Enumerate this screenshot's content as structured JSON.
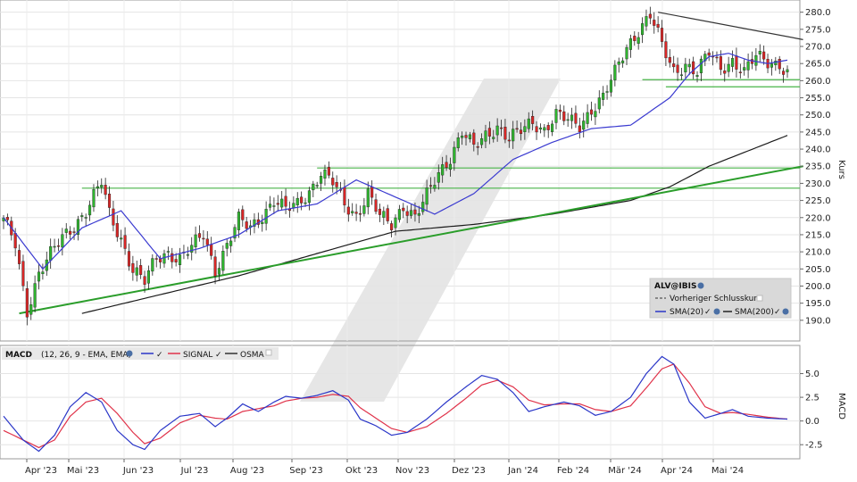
{
  "chart_data": {
    "type": "candlestick",
    "instrument": "ALV@IBIS",
    "x_labels": [
      "Apr '23",
      "Mai '23",
      "Jun '23",
      "Jul '23",
      "Aug '23",
      "Sep '23",
      "Okt '23",
      "Nov '23",
      "Dez '23",
      "Jan '24",
      "Feb '24",
      "Mär '24",
      "Apr '24",
      "Mai '24"
    ],
    "price_panel": {
      "ylabel": "Kurs",
      "ylim": [
        185,
        282
      ],
      "yticks": [
        "280.0",
        "275.0",
        "270.0",
        "265.0",
        "260.0",
        "255.0",
        "250.0",
        "245.0",
        "240.0",
        "235.0",
        "230.0",
        "225.0",
        "220.0",
        "215.0",
        "210.0",
        "205.0",
        "200.0",
        "195.0",
        "190.0"
      ],
      "close_anchors": [
        [
          0,
          219
        ],
        [
          3,
          212
        ],
        [
          6,
          193
        ],
        [
          9,
          204
        ],
        [
          12,
          209
        ],
        [
          15,
          214
        ],
        [
          18,
          218
        ],
        [
          21,
          222
        ],
        [
          23,
          226
        ],
        [
          25,
          230
        ],
        [
          27,
          221
        ],
        [
          30,
          214
        ],
        [
          33,
          205
        ],
        [
          36,
          201
        ],
        [
          39,
          208
        ],
        [
          42,
          210
        ],
        [
          45,
          208
        ],
        [
          48,
          211
        ],
        [
          51,
          215
        ],
        [
          54,
          205
        ],
        [
          57,
          212
        ],
        [
          60,
          219
        ],
        [
          63,
          217
        ],
        [
          66,
          221
        ],
        [
          69,
          225
        ],
        [
          72,
          222
        ],
        [
          75,
          224
        ],
        [
          78,
          228
        ],
        [
          81,
          233
        ],
        [
          84,
          230
        ],
        [
          87,
          224
        ],
        [
          90,
          221
        ],
        [
          93,
          227
        ],
        [
          96,
          220
        ],
        [
          99,
          218
        ],
        [
          102,
          224
        ],
        [
          105,
          220
        ],
        [
          108,
          226
        ],
        [
          111,
          233
        ],
        [
          114,
          238
        ],
        [
          117,
          245
        ],
        [
          120,
          240
        ],
        [
          123,
          244
        ],
        [
          126,
          247
        ],
        [
          129,
          243
        ],
        [
          132,
          245
        ],
        [
          135,
          248
        ],
        [
          138,
          246
        ],
        [
          141,
          250
        ],
        [
          144,
          248
        ],
        [
          147,
          247
        ],
        [
          150,
          252
        ],
        [
          153,
          255
        ],
        [
          156,
          262
        ],
        [
          159,
          270
        ],
        [
          162,
          275
        ],
        [
          165,
          279
        ],
        [
          168,
          270
        ],
        [
          171,
          263
        ],
        [
          174,
          265
        ],
        [
          177,
          262
        ],
        [
          180,
          268
        ],
        [
          183,
          264
        ],
        [
          186,
          266
        ],
        [
          189,
          262
        ],
        [
          192,
          267
        ],
        [
          195,
          266
        ],
        [
          198,
          265
        ],
        [
          200,
          262
        ]
      ],
      "n_bars": 201,
      "sma20_anchors": [
        [
          0,
          220
        ],
        [
          10,
          205
        ],
        [
          20,
          217
        ],
        [
          30,
          222
        ],
        [
          40,
          208
        ],
        [
          50,
          211
        ],
        [
          60,
          215
        ],
        [
          70,
          222
        ],
        [
          80,
          224
        ],
        [
          90,
          231
        ],
        [
          100,
          226
        ],
        [
          110,
          221
        ],
        [
          120,
          227
        ],
        [
          130,
          237
        ],
        [
          140,
          242
        ],
        [
          150,
          246
        ],
        [
          160,
          247
        ],
        [
          170,
          255
        ],
        [
          175,
          262
        ],
        [
          180,
          267
        ],
        [
          185,
          268
        ],
        [
          190,
          266
        ],
        [
          195,
          265
        ],
        [
          200,
          266
        ]
      ],
      "sma200_anchors": [
        [
          20,
          192
        ],
        [
          60,
          203
        ],
        [
          100,
          216
        ],
        [
          120,
          218
        ],
        [
          140,
          221
        ],
        [
          160,
          225
        ],
        [
          170,
          229
        ],
        [
          180,
          235
        ],
        [
          200,
          244
        ]
      ],
      "trendlines": [
        {
          "name": "support",
          "from": [
            4,
            192
          ],
          "to": [
            204,
            235
          ],
          "color": "#2a9d2a"
        },
        {
          "name": "resistance",
          "from": [
            167,
            280
          ],
          "to": [
            204,
            272
          ],
          "color": "#333333"
        }
      ],
      "horizontal_lines": [
        {
          "value": 234.5,
          "from_bar": 80
        },
        {
          "value": 228.6,
          "from_bar": 20
        },
        {
          "value": 260.3,
          "from_bar": 163
        },
        {
          "value": 258.2,
          "from_bar": 169
        }
      ]
    },
    "legend": {
      "title": "ALV@IBIS",
      "prev_close": "Vorheriger Schlusskurs",
      "sma20": "SMA(20)",
      "sma200": "SMA(200)"
    },
    "macd_panel": {
      "ylabel": "MACD",
      "params": "(12, 26, 9 - EMA, EMA)",
      "title": "MACD",
      "signal_label": "SIGNAL",
      "osma_label": "OSMA",
      "ylim": [
        -3.8,
        7.5
      ],
      "yticks": [
        "5.0",
        "2.5",
        "0.0",
        "-2.5"
      ],
      "macd_anchors": [
        [
          0,
          0.5
        ],
        [
          5,
          -2.0
        ],
        [
          9,
          -3.2
        ],
        [
          13,
          -1.5
        ],
        [
          17,
          1.5
        ],
        [
          21,
          3.0
        ],
        [
          25,
          2.0
        ],
        [
          29,
          -1.0
        ],
        [
          33,
          -2.5
        ],
        [
          36,
          -3.0
        ],
        [
          40,
          -1.0
        ],
        [
          45,
          0.5
        ],
        [
          50,
          0.8
        ],
        [
          54,
          -0.6
        ],
        [
          57,
          0.3
        ],
        [
          61,
          1.8
        ],
        [
          65,
          1.0
        ],
        [
          69,
          2.0
        ],
        [
          72,
          2.6
        ],
        [
          76,
          2.4
        ],
        [
          80,
          2.7
        ],
        [
          84,
          3.2
        ],
        [
          88,
          2.2
        ],
        [
          91,
          0.2
        ],
        [
          95,
          -0.5
        ],
        [
          99,
          -1.5
        ],
        [
          103,
          -1.2
        ],
        [
          108,
          0.2
        ],
        [
          113,
          2.0
        ],
        [
          118,
          3.6
        ],
        [
          122,
          4.8
        ],
        [
          126,
          4.4
        ],
        [
          130,
          3.0
        ],
        [
          134,
          1.0
        ],
        [
          138,
          1.5
        ],
        [
          143,
          2.0
        ],
        [
          147,
          1.6
        ],
        [
          151,
          0.6
        ],
        [
          155,
          1.0
        ],
        [
          160,
          2.5
        ],
        [
          164,
          5.0
        ],
        [
          168,
          6.8
        ],
        [
          171,
          6.0
        ],
        [
          175,
          2.0
        ],
        [
          179,
          0.3
        ],
        [
          183,
          0.8
        ],
        [
          186,
          1.2
        ],
        [
          190,
          0.5
        ],
        [
          195,
          0.3
        ],
        [
          200,
          0.2
        ]
      ],
      "signal_anchors": [
        [
          0,
          -1.0
        ],
        [
          5,
          -2.0
        ],
        [
          9,
          -2.8
        ],
        [
          13,
          -2.0
        ],
        [
          17,
          0.5
        ],
        [
          21,
          2.0
        ],
        [
          25,
          2.4
        ],
        [
          29,
          0.8
        ],
        [
          33,
          -1.2
        ],
        [
          36,
          -2.4
        ],
        [
          40,
          -1.8
        ],
        [
          45,
          -0.2
        ],
        [
          50,
          0.6
        ],
        [
          54,
          0.3
        ],
        [
          57,
          0.2
        ],
        [
          61,
          1.0
        ],
        [
          65,
          1.3
        ],
        [
          69,
          1.6
        ],
        [
          72,
          2.1
        ],
        [
          76,
          2.4
        ],
        [
          80,
          2.5
        ],
        [
          84,
          2.8
        ],
        [
          88,
          2.6
        ],
        [
          91,
          1.4
        ],
        [
          95,
          0.3
        ],
        [
          99,
          -0.8
        ],
        [
          103,
          -1.2
        ],
        [
          108,
          -0.6
        ],
        [
          113,
          0.8
        ],
        [
          118,
          2.4
        ],
        [
          122,
          3.8
        ],
        [
          126,
          4.3
        ],
        [
          130,
          3.6
        ],
        [
          134,
          2.2
        ],
        [
          138,
          1.7
        ],
        [
          143,
          1.8
        ],
        [
          147,
          1.8
        ],
        [
          151,
          1.2
        ],
        [
          155,
          1.0
        ],
        [
          160,
          1.6
        ],
        [
          164,
          3.5
        ],
        [
          168,
          5.5
        ],
        [
          171,
          6.0
        ],
        [
          175,
          4.0
        ],
        [
          179,
          1.5
        ],
        [
          183,
          0.8
        ],
        [
          186,
          0.9
        ],
        [
          190,
          0.7
        ],
        [
          195,
          0.4
        ],
        [
          200,
          0.2
        ]
      ]
    },
    "watermark": "logo"
  }
}
